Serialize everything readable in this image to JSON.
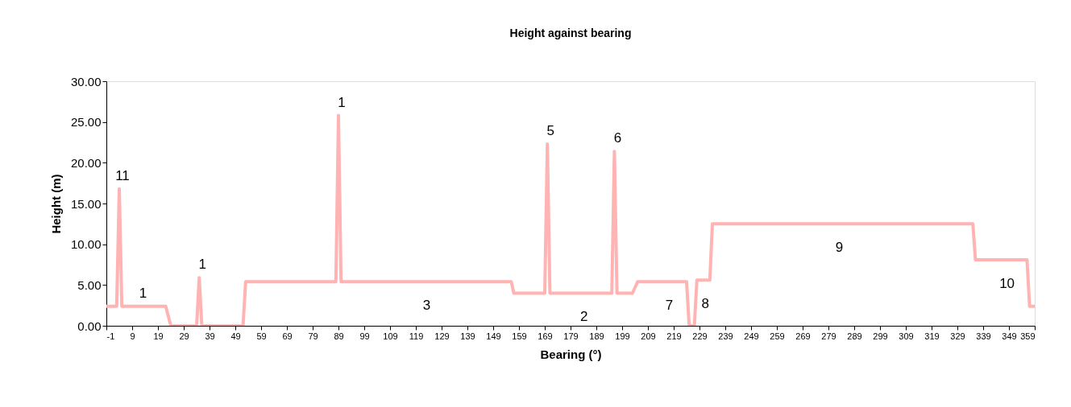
{
  "chart_data": {
    "type": "line",
    "title": "Height against bearing",
    "xlabel": "Bearing (°)",
    "ylabel": "Height (m)",
    "x": [
      -1,
      3,
      4,
      5,
      22,
      24,
      34,
      35,
      36,
      52,
      53,
      88,
      89,
      90,
      156,
      157,
      169,
      170,
      171,
      195,
      196,
      197,
      203,
      205,
      224,
      225,
      227,
      228,
      233,
      234,
      335,
      336,
      356,
      357,
      359
    ],
    "series": [
      {
        "color": "#ffb3b3",
        "values": [
          2.4,
          2.4,
          16.8,
          2.4,
          2.4,
          0,
          0,
          5.9,
          0,
          0,
          5.4,
          5.4,
          25.8,
          5.4,
          5.4,
          4.0,
          4.0,
          22.3,
          4.0,
          4.0,
          21.4,
          4.0,
          4.0,
          5.4,
          5.4,
          0,
          0,
          5.6,
          5.6,
          12.5,
          12.5,
          8.1,
          8.1,
          2.4,
          2.4
        ]
      }
    ],
    "xlim": [
      -1,
      359
    ],
    "xticks": [
      -1,
      9,
      19,
      29,
      39,
      49,
      59,
      69,
      79,
      89,
      99,
      109,
      119,
      129,
      139,
      149,
      159,
      169,
      179,
      189,
      199,
      209,
      219,
      229,
      239,
      249,
      259,
      269,
      279,
      289,
      299,
      309,
      319,
      329,
      339,
      349,
      359
    ],
    "ylim": [
      0,
      30
    ],
    "yticks": [
      {
        "value": 0,
        "label": "0.00"
      },
      {
        "value": 5,
        "label": "5.00"
      },
      {
        "value": 10,
        "label": "10.00"
      },
      {
        "value": 15,
        "label": "15.00"
      },
      {
        "value": 20,
        "label": "20.00"
      },
      {
        "value": 25,
        "label": "25.00"
      },
      {
        "value": 30,
        "label": "30.00"
      }
    ],
    "grid": false,
    "marker": "none",
    "line_style": "solid",
    "annotations": [
      {
        "text": "11",
        "x": 4,
        "y": 16.8
      },
      {
        "text": "1",
        "x": 12,
        "y": 2.4
      },
      {
        "text": "1",
        "x": 35,
        "y": 5.9
      },
      {
        "text": "1",
        "x": 89,
        "y": 25.8
      },
      {
        "text": "5",
        "x": 170,
        "y": 22.3
      },
      {
        "text": "6",
        "x": 196,
        "y": 21.4
      },
      {
        "text": "3",
        "x": 122,
        "y": 5.4
      },
      {
        "text": "2",
        "x": 183,
        "y": 4.0
      },
      {
        "text": "7",
        "x": 216,
        "y": 5.4
      },
      {
        "text": "8",
        "x": 230,
        "y": 5.6
      },
      {
        "text": "9",
        "x": 282,
        "y": 12.5
      },
      {
        "text": "10",
        "x": 347,
        "y": 8.1
      }
    ]
  }
}
